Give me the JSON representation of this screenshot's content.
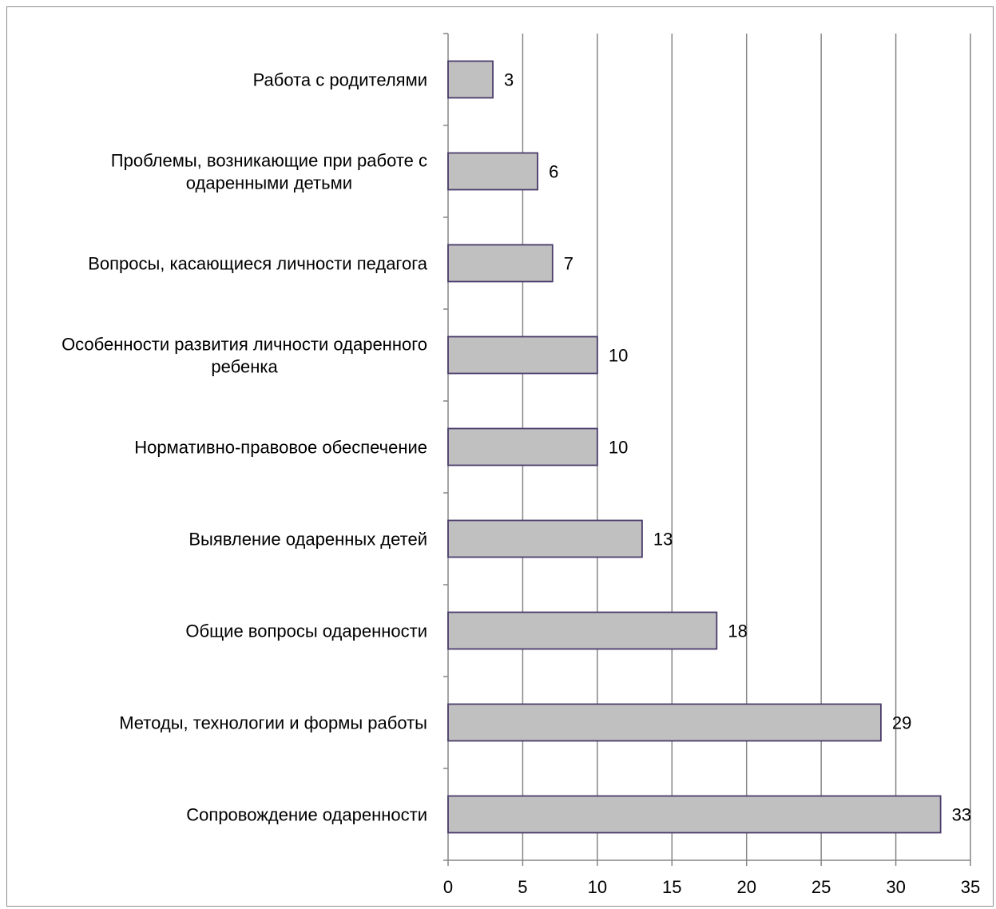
{
  "chart_data": {
    "type": "bar",
    "orientation": "horizontal",
    "title": "",
    "xlabel": "",
    "ylabel": "",
    "categories": [
      "Сопровождение одаренности",
      "Методы, технологии и формы работы",
      "Общие вопросы одаренности",
      "Выявление одаренных детей",
      "Нормативно-правовое обеспечение",
      "Особенности развития личности одаренного ребенка",
      "Вопросы, касающиеся личности педагога",
      "Проблемы, возникающие при работе с одаренными детьми",
      "Работа с родителями"
    ],
    "category_label_lines": [
      [
        "Сопровождение одаренности"
      ],
      [
        "Методы, технологии и формы работы"
      ],
      [
        "Общие вопросы одаренности"
      ],
      [
        "Выявление одаренных детей"
      ],
      [
        "Нормативно-правовое обеспечение"
      ],
      [
        "Особенности развития личности одаренного",
        "ребенка"
      ],
      [
        "Вопросы, касающиеся личности педагога"
      ],
      [
        "Проблемы, возникающие при работе с",
        "одаренными детьми"
      ],
      [
        "Работа с родителями"
      ]
    ],
    "values": [
      33,
      29,
      18,
      13,
      10,
      10,
      7,
      6,
      3
    ],
    "xlim": [
      0,
      35
    ],
    "xticks": [
      0,
      5,
      10,
      15,
      20,
      25,
      30,
      35
    ],
    "grid": true,
    "legend": "none",
    "data_labels": true,
    "colors": {
      "bar_fill": "#c0c0c0",
      "bar_stroke": "#4b3b6b",
      "grid": "#868686",
      "axis": "#868686"
    }
  }
}
